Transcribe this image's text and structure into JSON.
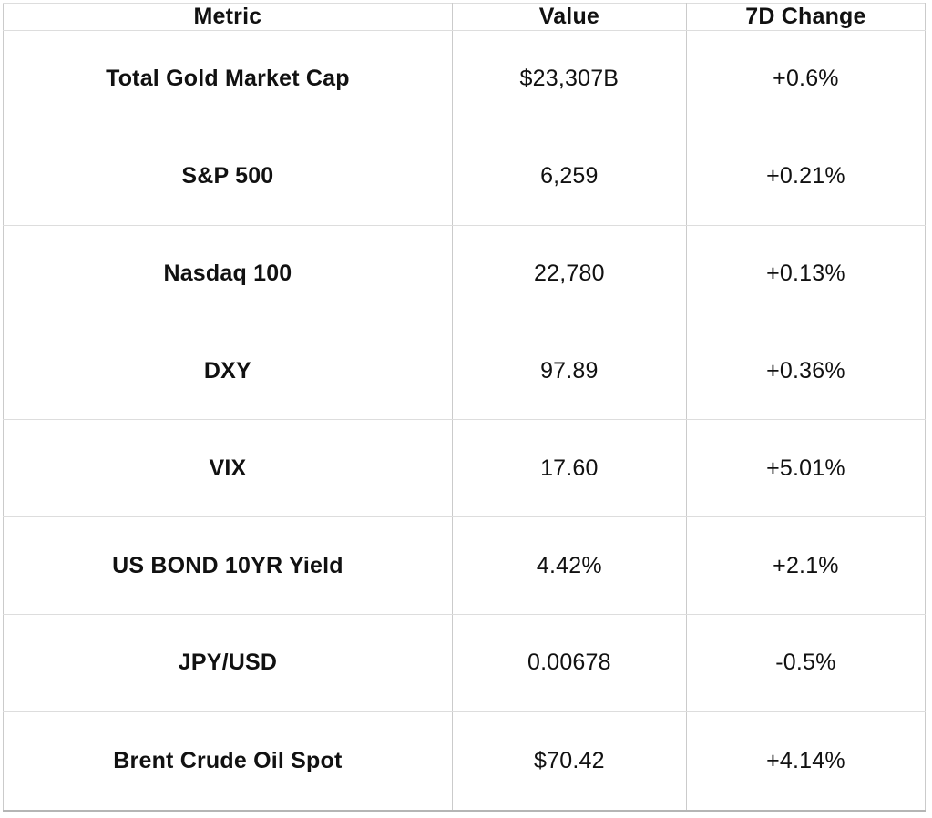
{
  "colors": {
    "background": "#ffffff",
    "text": "#111111",
    "border_vertical": "#cbcbcb",
    "border_horizontal": "#dddddd",
    "border_outer": "#c6c6c6"
  },
  "table": {
    "headers": [
      "Metric",
      "Value",
      "7D Change"
    ],
    "rows": [
      {
        "metric": "Total Gold Market Cap",
        "value": "$23,307B",
        "change": "+0.6%"
      },
      {
        "metric": "S&P 500",
        "value": "6,259",
        "change": "+0.21%"
      },
      {
        "metric": "Nasdaq 100",
        "value": "22,780",
        "change": "+0.13%"
      },
      {
        "metric": "DXY",
        "value": "97.89",
        "change": "+0.36%"
      },
      {
        "metric": "VIX",
        "value": "17.60",
        "change": "+5.01%"
      },
      {
        "metric": "US BOND 10YR Yield",
        "value": "4.42%",
        "change": "+2.1%"
      },
      {
        "metric": "JPY/USD",
        "value": "0.00678",
        "change": "-0.5%"
      },
      {
        "metric": "Brent Crude Oil Spot",
        "value": "$70.42",
        "change": "+4.14%"
      }
    ]
  }
}
